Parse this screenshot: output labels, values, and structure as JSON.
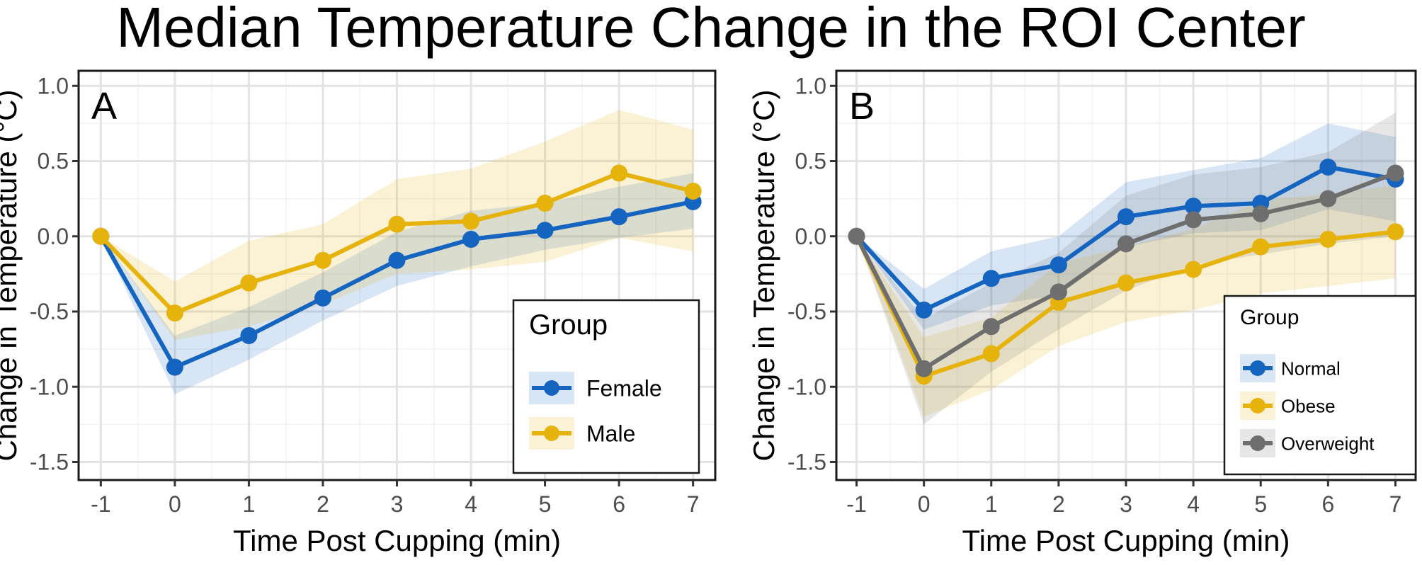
{
  "figure_title": "Median Temperature Change in the ROI Center",
  "chart_data": [
    {
      "type": "line",
      "panel_label": "A",
      "title": "",
      "xlabel": "Time Post Cupping (min)",
      "ylabel": "Change in Temperature (°C)",
      "x": [
        -1,
        0,
        1,
        2,
        3,
        4,
        5,
        6,
        7
      ],
      "xlim": [
        -1.3,
        7.3
      ],
      "ylim": [
        -1.62,
        1.1
      ],
      "xticks": [
        -1,
        0,
        1,
        2,
        3,
        4,
        5,
        6,
        7
      ],
      "xtick_labels": [
        "-1",
        "0",
        "1",
        "2",
        "3",
        "4",
        "5",
        "6",
        "7"
      ],
      "yticks": [
        1.0,
        0.5,
        0.0,
        -0.5,
        -1.0,
        -1.5
      ],
      "ytick_labels": [
        "1.0",
        "0.5",
        "0.0",
        "-0.5",
        "-1.0",
        "-1.5"
      ],
      "grid": true,
      "legend": {
        "title": "Group",
        "position": "bottom-right"
      },
      "series": [
        {
          "name": "Female",
          "color": "#1565c0",
          "values": [
            0.0,
            -0.87,
            -0.66,
            -0.41,
            -0.16,
            -0.02,
            0.04,
            0.13,
            0.23
          ],
          "lower": [
            0.0,
            -1.05,
            -0.82,
            -0.56,
            -0.33,
            -0.2,
            -0.09,
            -0.01,
            0.05
          ],
          "upper": [
            0.0,
            -0.66,
            -0.47,
            -0.24,
            0.03,
            0.17,
            0.22,
            0.33,
            0.42
          ]
        },
        {
          "name": "Male",
          "color": "#e6b20c",
          "values": [
            0.0,
            -0.51,
            -0.31,
            -0.16,
            0.08,
            0.1,
            0.22,
            0.42,
            0.3
          ],
          "lower": [
            0.0,
            -0.69,
            -0.6,
            -0.45,
            -0.25,
            -0.22,
            -0.17,
            -0.01,
            -0.1
          ],
          "upper": [
            0.0,
            -0.3,
            -0.03,
            0.08,
            0.38,
            0.45,
            0.63,
            0.84,
            0.71
          ]
        }
      ]
    },
    {
      "type": "line",
      "panel_label": "B",
      "title": "",
      "xlabel": "Time Post Cupping (min)",
      "ylabel": "Change in Temperature (°C)",
      "x": [
        -1,
        0,
        1,
        2,
        3,
        4,
        5,
        6,
        7
      ],
      "xlim": [
        -1.3,
        7.3
      ],
      "ylim": [
        -1.62,
        1.1
      ],
      "xticks": [
        -1,
        0,
        1,
        2,
        3,
        4,
        5,
        6,
        7
      ],
      "xtick_labels": [
        "-1",
        "0",
        "1",
        "2",
        "3",
        "4",
        "5",
        "6",
        "7"
      ],
      "yticks": [
        1.0,
        0.5,
        0.0,
        -0.5,
        -1.0,
        -1.5
      ],
      "ytick_labels": [
        "1.0",
        "0.5",
        "0.0",
        "-0.5",
        "-1.0",
        "-1.5"
      ],
      "grid": true,
      "legend": {
        "title": "Group",
        "position": "bottom-right"
      },
      "series": [
        {
          "name": "Normal",
          "color": "#1565c0",
          "values": [
            0.0,
            -0.49,
            -0.28,
            -0.19,
            0.13,
            0.2,
            0.22,
            0.46,
            0.38
          ],
          "lower": [
            0.0,
            -0.62,
            -0.46,
            -0.39,
            -0.07,
            0.02,
            0.04,
            0.18,
            0.1
          ],
          "upper": [
            0.0,
            -0.35,
            -0.1,
            0.0,
            0.36,
            0.44,
            0.52,
            0.75,
            0.66
          ]
        },
        {
          "name": "Obese",
          "color": "#e6b20c",
          "values": [
            0.0,
            -0.93,
            -0.78,
            -0.44,
            -0.31,
            -0.22,
            -0.07,
            -0.02,
            0.03
          ],
          "lower": [
            0.0,
            -1.2,
            -1.02,
            -0.73,
            -0.57,
            -0.49,
            -0.38,
            -0.33,
            -0.28
          ],
          "upper": [
            0.0,
            -0.67,
            -0.54,
            -0.18,
            -0.07,
            0.05,
            0.24,
            0.28,
            0.34
          ]
        },
        {
          "name": "Overweight",
          "color": "#6e6e6e",
          "values": [
            0.0,
            -0.88,
            -0.6,
            -0.37,
            -0.05,
            0.11,
            0.15,
            0.25,
            0.42
          ],
          "lower": [
            0.0,
            -1.25,
            -0.9,
            -0.62,
            -0.36,
            -0.19,
            -0.12,
            -0.05,
            0.0
          ],
          "upper": [
            0.0,
            -0.55,
            -0.31,
            -0.11,
            0.27,
            0.41,
            0.46,
            0.56,
            0.82
          ]
        }
      ]
    }
  ]
}
